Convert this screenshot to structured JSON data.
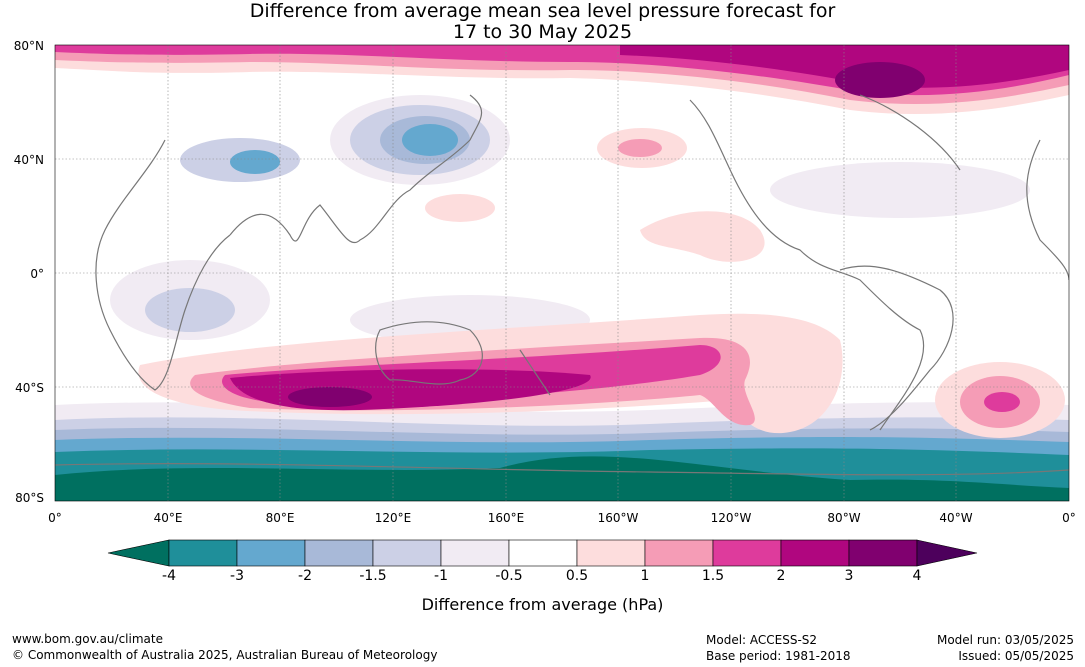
{
  "title_line1": "Difference from average mean sea level pressure forecast for",
  "title_line2": "17 to 30 May 2025",
  "lat_labels": [
    "80°N",
    "40°N",
    "0°",
    "40°S",
    "80°S"
  ],
  "lon_labels": [
    "0°",
    "40°E",
    "80°E",
    "120°E",
    "160°E",
    "160°W",
    "120°W",
    "80°W",
    "40°W",
    "0°"
  ],
  "colorbar": {
    "label": "Difference from average (hPa)",
    "ticks": [
      "-4",
      "-3",
      "-2",
      "-1.5",
      "-1",
      "-0.5",
      "0.5",
      "1",
      "1.5",
      "2",
      "3",
      "4"
    ],
    "colors": [
      "#007060",
      "#1f8f9a",
      "#64a8cf",
      "#a8b9d8",
      "#ccd0e6",
      "#f1ebf3",
      "#ffffff",
      "#fddddd",
      "#f59cb6",
      "#de3b9c",
      "#b0067f",
      "#80006f",
      "#4d005c"
    ]
  },
  "footer": {
    "url": "www.bom.gov.au/climate",
    "copyright": "© Commonwealth of Australia 2025, Australian Bureau of Meteorology",
    "model": "Model: ACCESS-S2",
    "base_period": "Base period: 1981-2018",
    "model_run": "Model run: 03/05/2025",
    "issued": "Issued: 05/05/2025"
  }
}
